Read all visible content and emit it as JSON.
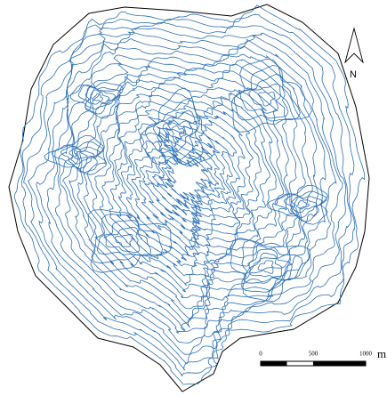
{
  "north_arrow": {
    "label": "N"
  },
  "scale_bar": {
    "labels": [
      "0",
      "500",
      "1000"
    ],
    "unit": "m"
  }
}
